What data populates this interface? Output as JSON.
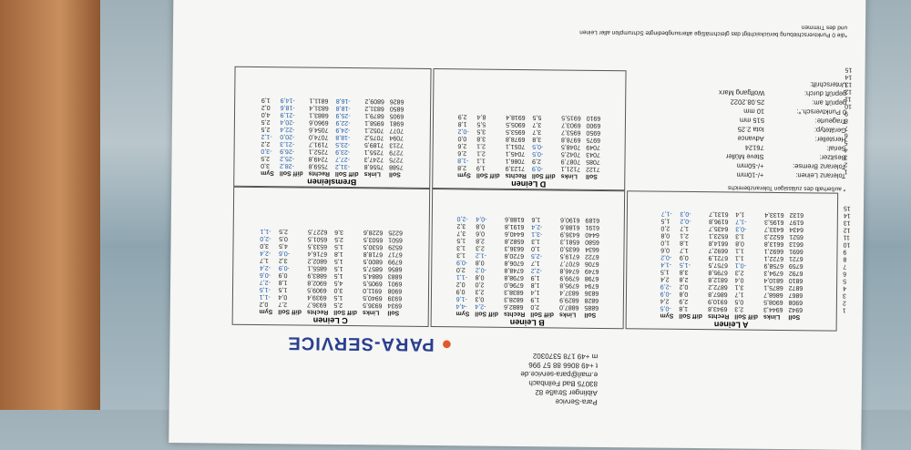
{
  "header": {
    "company": "Para-Service",
    "street": "Aiblinger Straße 82",
    "city": "83075 Bad Feilnbach",
    "email": "e.mail@para-service.de",
    "phone": "t +49 8066 88 57 996",
    "mobile": "m +49 178 5370302",
    "logo": "PARA-SERVICE"
  },
  "columns": [
    "Soll",
    "Links",
    "diff Soll",
    "Rechts",
    "diff Soll",
    "Sym"
  ],
  "row_numbers": [
    "1",
    "2",
    "3",
    "4",
    "5",
    "6",
    "7",
    "8",
    "9",
    "10",
    "11",
    "12",
    "13",
    "14",
    "15"
  ],
  "tables": [
    {
      "title": "A Leinen",
      "rows": [
        [
          "6942",
          "6944,3",
          "2,3",
          "6943,8",
          "1,8",
          "-0,5"
        ],
        [
          "6908",
          "6908,5",
          "0,5",
          "6910,9",
          "2,9",
          "2,4"
        ],
        [
          "6867",
          "6868,7",
          "1,7",
          "6867,8",
          "0,8",
          "-0,9"
        ],
        [
          "6872",
          "6875,1",
          "3,1",
          "6872,2",
          "0,2",
          "-2,9"
        ],
        [
          "6810",
          "6810,4",
          "0,4",
          "6812,8",
          "2,8",
          "2,4"
        ],
        [
          "6792",
          "6794,3",
          "2,3",
          "6795,8",
          "3,8",
          "1,5"
        ],
        [
          "6759",
          "6758,9",
          "-0,1",
          "6757,5",
          "-1,5",
          "-1,4"
        ],
        [
          "6721",
          "6722,1",
          "1,1",
          "6721,9",
          "0,9",
          "-0,2"
        ],
        [
          "6691",
          "6692,1",
          "1,1",
          "6692,7",
          "1,7",
          "0,6"
        ],
        [
          "6613",
          "6613,8",
          "0,8",
          "6614,8",
          "1,8",
          "1,0"
        ],
        [
          "6521",
          "6522,3",
          "1,3",
          "6523,1",
          "2,1",
          "0,8"
        ],
        [
          "6434",
          "6433,7",
          "-0,3",
          "6435,7",
          "1,7",
          "2,0"
        ],
        [
          "6197",
          "6195,3",
          "-1,7",
          "6196,8",
          "-0,2",
          "1,5"
        ],
        [
          "6132",
          "6133,4",
          "1,4",
          "6131,7",
          "-0,3",
          "-1,7"
        ]
      ]
    },
    {
      "title": "B Leinen",
      "rows": [
        [
          "6885",
          "6887,0",
          "2,0",
          "6882,6",
          "-2,4",
          "-4,4"
        ],
        [
          "6828",
          "6829,9",
          "1,9",
          "6828,3",
          "0,3",
          "-1,6"
        ],
        [
          "6836",
          "6837,4",
          "1,4",
          "6838,3",
          "2,3",
          "0,9"
        ],
        [
          "6794",
          "6795,8",
          "1,8",
          "6796,0",
          "2,0",
          "0,2"
        ],
        [
          "6798",
          "6799,9",
          "1,9",
          "6798,8",
          "0,8",
          "-1,1"
        ],
        [
          "6749",
          "6746,8",
          "-2,2",
          "6748,8",
          "-0,2",
          "2,0"
        ],
        [
          "6706",
          "6707,7",
          "1,7",
          "6706,8",
          "0,8",
          "-0,9"
        ],
        [
          "6722",
          "6719,5",
          "-2,5",
          "6720,8",
          "-1,2",
          "1,3"
        ],
        [
          "6634",
          "6635,0",
          "1,0",
          "6636,3",
          "2,3",
          "1,3"
        ],
        [
          "6580",
          "6581,3",
          "1,3",
          "6582,8",
          "2,8",
          "1,5"
        ],
        [
          "6440",
          "6436,9",
          "-3,1",
          "6440,6",
          "0,6",
          "3,7"
        ],
        [
          "6191",
          "6188,6",
          "-2,4",
          "6191,8",
          "0,8",
          "3,2"
        ],
        [
          "6189",
          "6190,6",
          "1,6",
          "6188,6",
          "-0,4",
          "-2,0"
        ]
      ]
    },
    {
      "title": "C Leinen",
      "rows": [
        [
          "6934",
          "6936,5",
          "2,5",
          "6936,7",
          "2,7",
          "0,2"
        ],
        [
          "6939",
          "6940,5",
          "1,5",
          "6939,4",
          "0,4",
          "-1,1"
        ],
        [
          "6908",
          "6911,0",
          "3,0",
          "6909,5",
          "1,5",
          "-1,5"
        ],
        [
          "6901",
          "6905,5",
          "4,5",
          "6902,8",
          "1,8",
          "-2,7"
        ],
        [
          "6883",
          "6884,5",
          "1,5",
          "6883,9",
          "0,9",
          "-0,6"
        ],
        [
          "6856",
          "6857,5",
          "1,5",
          "6855,1",
          "-0,9",
          "-2,4"
        ],
        [
          "6799",
          "6800,5",
          "1,5",
          "6802,2",
          "3,2",
          "1,7"
        ],
        [
          "6717",
          "6718,8",
          "1,8",
          "6716,4",
          "-0,6",
          "-2,4"
        ],
        [
          "6529",
          "6530,5",
          "1,5",
          "6533,5",
          "4,5",
          "3,0"
        ],
        [
          "6501",
          "6503,5",
          "2,5",
          "6501,5",
          "0,5",
          "-2,0"
        ],
        [
          "6225",
          "6228,6",
          "3,6",
          "6227,5",
          "2,5",
          "-1,1"
        ]
      ]
    },
    {
      "title": "D Leinen",
      "rows": [
        [
          "7122",
          "7121,1",
          "-0,9",
          "7123,9",
          "1,9",
          "2,8"
        ],
        [
          "7085",
          "7087,9",
          "2,9",
          "7086,1",
          "1,1",
          "-1,8"
        ],
        [
          "7043",
          "7042,5",
          "-0,5",
          "7045,1",
          "2,1",
          "2,6"
        ],
        [
          "7049",
          "7048,5",
          "-0,5",
          "7051,1",
          "2,1",
          "2,6"
        ],
        [
          "6975",
          "6978,8",
          "3,8",
          "6978,8",
          "3,8",
          "0,0"
        ],
        [
          "6950",
          "6953,7",
          "3,7",
          "6953,5",
          "3,5",
          "-0,2"
        ],
        [
          "6900",
          "6903,7",
          "3,7",
          "6905,5",
          "5,5",
          "1,8"
        ],
        [
          "6910",
          "6915,5",
          "5,5",
          "6918,4",
          "8,4",
          "2,9"
        ]
      ]
    },
    {
      "title": "Bremsleinen",
      "rows": [
        [
          "7588",
          "7556,8",
          "-31,2",
          "7559,8",
          "-28,2",
          "3,0"
        ],
        [
          "7275",
          "7247,3",
          "-27,7",
          "7249,8",
          "-25,2",
          "2,5"
        ],
        [
          "7279",
          "7255,1",
          "-23,9",
          "7252,1",
          "-26,9",
          "-3,0"
        ],
        [
          "7213",
          "7189,5",
          "-23,5",
          "7191,7",
          "-21,3",
          "2,2"
        ],
        [
          "7094",
          "7075,2",
          "-18,8",
          "7074,0",
          "-20,0",
          "-1,2"
        ],
        [
          "7077",
          "7052,1",
          "-24,9",
          "7054,6",
          "-22,4",
          "2,5"
        ],
        [
          "6981",
          "6958,1",
          "-22,9",
          "6960,6",
          "-20,4",
          "2,5"
        ],
        [
          "6905",
          "6879,1",
          "-25,9",
          "6883,1",
          "-21,9",
          "4,0"
        ],
        [
          "6850",
          "6831,2",
          "-18,8",
          "6831,4",
          "-18,6",
          "0,2"
        ],
        [
          "6826",
          "6809,2",
          "-16,8",
          "6811,1",
          "-14,9",
          "1,9"
        ]
      ]
    }
  ],
  "info": {
    "tolerance_note": "* außerhalb des zulässigen Toleranzbereichs",
    "rows": [
      [
        "Toleranz Leinen:",
        "+/-10mm"
      ],
      [
        "Toleranz Bremse:",
        "+/-50mm"
      ],
      [
        "Besitzer:",
        "Steve Müller"
      ],
      [
        "Serial:",
        "76124"
      ],
      [
        "Hersteller:",
        "Advance"
      ],
      [
        "Gerätetyp:",
        "Iota 2.25"
      ],
      [
        "Trageurte:",
        "515 mm"
      ],
      [
        "0 Punktversch.*:",
        "10 mm"
      ],
      [
        "geprüft am:",
        "25.08.2022"
      ],
      [
        "geprüft durch:",
        "Wolfgang Marx"
      ],
      [
        "Unterschrift:",
        ""
      ]
    ],
    "footnote": "*die 0 Punktverschiebung berücksichtigt das gleichmäßige altersungbedingte Schrumpfen aller Leinen und des Trimmen"
  }
}
